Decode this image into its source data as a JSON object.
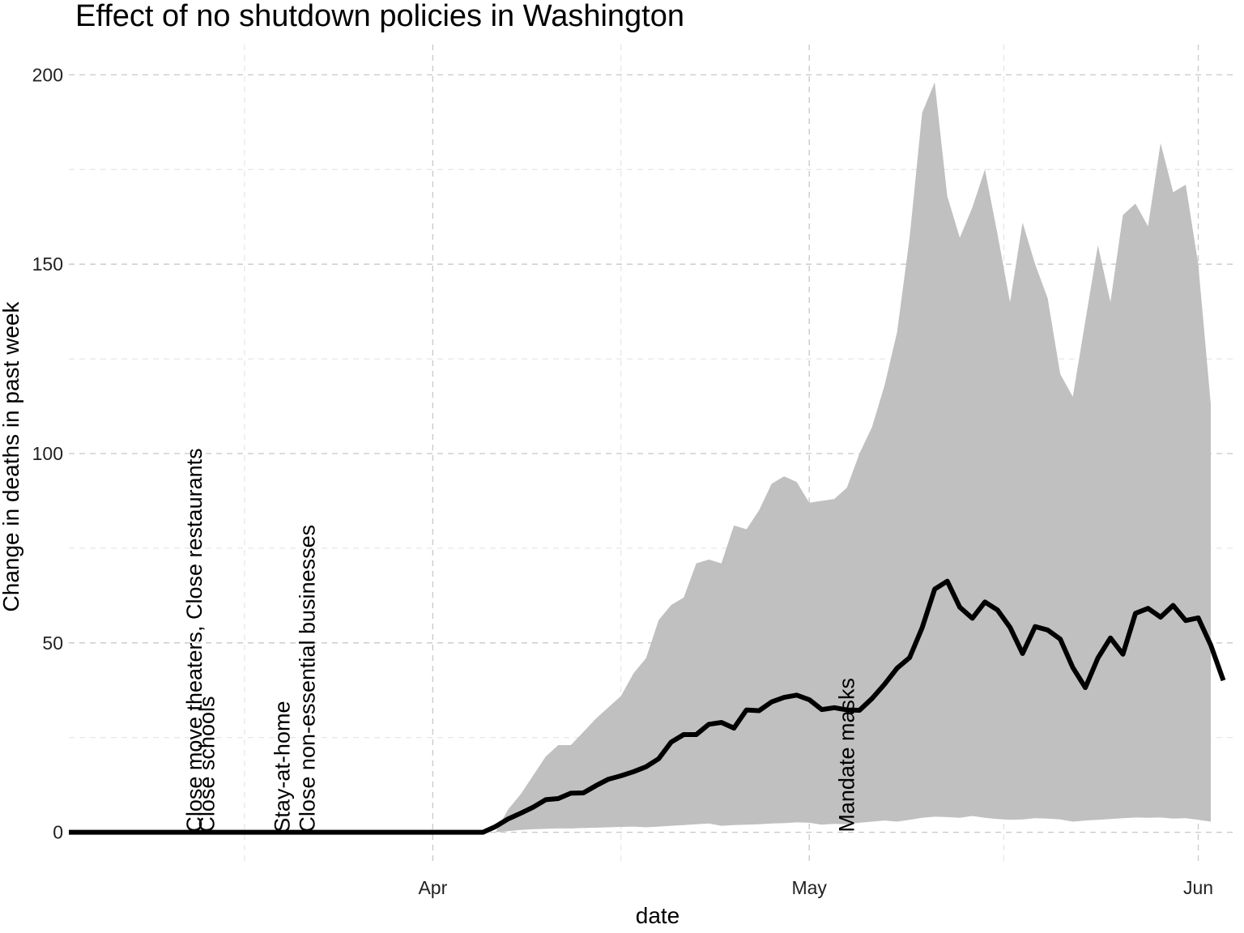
{
  "chart_data": {
    "type": "area",
    "title": "Effect of no shutdown policies in Washington",
    "xlabel": "date",
    "ylabel": "Change in deaths in past week",
    "ylim": [
      -8,
      208
    ],
    "y_ticks": [
      0,
      50,
      100,
      150,
      200
    ],
    "x_ticks": [
      {
        "date": "2020-04-01",
        "label": "Apr"
      },
      {
        "date": "2020-05-01",
        "label": "May"
      },
      {
        "date": "2020-06-01",
        "label": "Jun"
      }
    ],
    "xlim": [
      "2020-03-03",
      "2020-06-04"
    ],
    "grid": true,
    "legend": "none",
    "series": [
      {
        "kind": "ribbon",
        "color": "#c0c0c0",
        "x": [
          "2020-04-06",
          "2020-04-07",
          "2020-04-08",
          "2020-04-09",
          "2020-04-10",
          "2020-04-11",
          "2020-04-12",
          "2020-04-13",
          "2020-04-14",
          "2020-04-15",
          "2020-04-16",
          "2020-04-17",
          "2020-04-18",
          "2020-04-19",
          "2020-04-20",
          "2020-04-21",
          "2020-04-22",
          "2020-04-23",
          "2020-04-24",
          "2020-04-25",
          "2020-04-26",
          "2020-04-27",
          "2020-04-28",
          "2020-04-29",
          "2020-04-30",
          "2020-05-01",
          "2020-05-02",
          "2020-05-03",
          "2020-05-04",
          "2020-05-05",
          "2020-05-06",
          "2020-05-07",
          "2020-05-08",
          "2020-05-09",
          "2020-05-10",
          "2020-05-11",
          "2020-05-12",
          "2020-05-13",
          "2020-05-14",
          "2020-05-15",
          "2020-05-16",
          "2020-05-17",
          "2020-05-18",
          "2020-05-19",
          "2020-05-20",
          "2020-05-21",
          "2020-05-22",
          "2020-05-23",
          "2020-05-24",
          "2020-05-25",
          "2020-05-26",
          "2020-05-27",
          "2020-05-28",
          "2020-05-29",
          "2020-05-30",
          "2020-05-31",
          "2020-06-01",
          "2020-06-02"
        ],
        "lower": [
          0,
          0.3,
          0.6,
          0.8,
          0.9,
          1,
          1,
          1.1,
          1.2,
          1.3,
          1.4,
          1.5,
          1.3,
          1.5,
          1.7,
          1.9,
          2.1,
          2.3,
          1.7,
          1.9,
          2,
          2.1,
          2.3,
          2.4,
          2.6,
          2.5,
          2,
          2.2,
          2.1,
          2.5,
          2.8,
          3.1,
          2.8,
          3.3,
          3.8,
          4.1,
          4,
          3.8,
          4.3,
          3.8,
          3.5,
          3.3,
          3.4,
          3.7,
          3.6,
          3.4,
          2.8,
          3.1,
          3.3,
          3.5,
          3.7,
          3.9,
          3.8,
          3.9,
          3.6,
          3.7,
          3.3,
          2.8
        ],
        "upper": [
          0,
          6,
          10,
          15,
          20,
          23,
          23,
          26.5,
          30,
          33,
          36,
          42,
          46,
          56,
          60,
          62,
          71,
          72,
          71,
          81,
          80,
          85,
          92,
          94,
          92.5,
          87,
          87.5,
          88,
          91,
          100,
          107,
          118,
          132,
          157,
          190,
          198,
          168,
          157,
          165,
          175,
          158,
          140,
          161,
          150,
          141,
          121,
          115,
          135,
          155,
          140,
          163,
          166,
          160,
          182,
          169,
          171,
          150,
          113
        ]
      },
      {
        "kind": "line",
        "color": "#000000",
        "x": [
          "2020-03-03",
          "2020-03-13",
          "2020-03-23",
          "2020-04-02",
          "2020-04-05",
          "2020-04-06",
          "2020-04-07",
          "2020-04-08",
          "2020-04-09",
          "2020-04-10",
          "2020-04-11",
          "2020-04-12",
          "2020-04-13",
          "2020-04-14",
          "2020-04-15",
          "2020-04-16",
          "2020-04-17",
          "2020-04-18",
          "2020-04-19",
          "2020-04-20",
          "2020-04-21",
          "2020-04-22",
          "2020-04-23",
          "2020-04-24",
          "2020-04-25",
          "2020-04-26",
          "2020-04-27",
          "2020-04-28",
          "2020-04-29",
          "2020-04-30",
          "2020-05-01",
          "2020-05-02",
          "2020-05-03",
          "2020-05-04",
          "2020-05-05",
          "2020-05-06",
          "2020-05-07",
          "2020-05-08",
          "2020-05-09",
          "2020-05-10",
          "2020-05-11",
          "2020-05-12",
          "2020-05-13",
          "2020-05-14",
          "2020-05-15",
          "2020-05-16",
          "2020-05-17",
          "2020-05-18",
          "2020-05-19",
          "2020-05-20",
          "2020-05-21",
          "2020-05-22",
          "2020-05-23",
          "2020-05-24",
          "2020-05-25",
          "2020-05-26",
          "2020-05-27",
          "2020-05-28",
          "2020-05-29",
          "2020-05-30",
          "2020-05-31",
          "2020-06-01",
          "2020-06-02",
          "2020-06-03"
        ],
        "y": [
          0,
          0,
          0,
          0,
          0,
          1.5,
          3.5,
          5,
          6.6,
          8.6,
          8.9,
          10.3,
          10.4,
          12.3,
          14,
          14.9,
          16,
          17.3,
          19.4,
          23.8,
          25.8,
          25.8,
          28.5,
          29,
          27.5,
          32.3,
          32.1,
          34.4,
          35.6,
          36.2,
          35,
          32.4,
          32.9,
          32.3,
          32.2,
          35.3,
          39.1,
          43.3,
          46.1,
          54,
          64.2,
          66.3,
          59.4,
          56.5,
          60.8,
          58.7,
          54.1,
          47.2,
          54.3,
          53.4,
          51,
          43.5,
          38.2,
          46,
          51.3,
          47,
          57.8,
          59.1,
          56.8,
          59.9,
          55.9,
          56.6,
          49.4,
          40.1
        ]
      }
    ],
    "annotations": [
      {
        "date": "2020-03-13",
        "text": "Close move theaters, Close restaurants"
      },
      {
        "date": "2020-03-14",
        "text": "Close schools"
      },
      {
        "date": "2020-03-20",
        "text": "Stay-at-home"
      },
      {
        "date": "2020-03-22",
        "text": "Close non-essential businesses"
      },
      {
        "date": "2020-05-04",
        "text": "Mandate masks"
      }
    ]
  }
}
